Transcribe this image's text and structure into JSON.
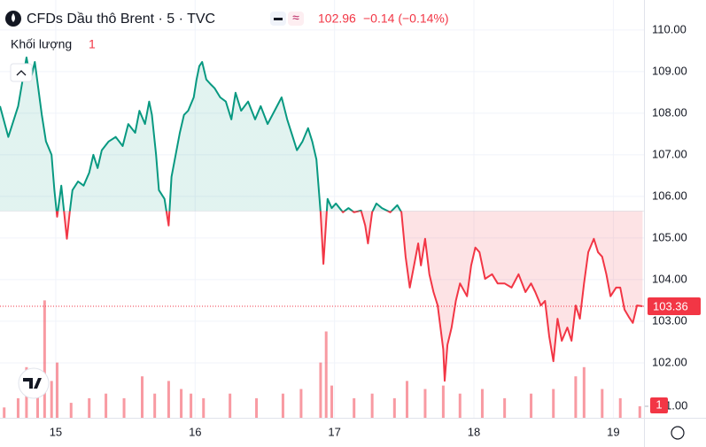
{
  "chart_data": {
    "type": "baseline",
    "title": "CFDs Dầu thô Brent · 5 · TVC",
    "change_text": "−0.14 (−0.14%)",
    "volume_label": "Khối lượng",
    "x": [
      14.6,
      14.66,
      14.73,
      14.79,
      14.82,
      14.85,
      14.9,
      14.93,
      14.97,
      14.99,
      15.01,
      15.04,
      15.08,
      15.1,
      15.12,
      15.16,
      15.2,
      15.24,
      15.27,
      15.3,
      15.33,
      15.38,
      15.43,
      15.48,
      15.52,
      15.57,
      15.6,
      15.64,
      15.67,
      15.69,
      15.72,
      15.74,
      15.78,
      15.81,
      15.83,
      15.86,
      15.89,
      15.92,
      15.95,
      15.99,
      16.01,
      16.03,
      16.05,
      16.08,
      16.11,
      16.14,
      16.18,
      16.22,
      16.26,
      16.29,
      16.33,
      16.38,
      16.43,
      16.47,
      16.52,
      16.57,
      16.62,
      16.66,
      16.7,
      16.73,
      16.77,
      16.81,
      16.84,
      16.87,
      16.9,
      16.92,
      16.95,
      16.98,
      17.01,
      17.06,
      17.1,
      17.14,
      17.19,
      17.22,
      17.24,
      17.27,
      17.3,
      17.34,
      17.4,
      17.45,
      17.48,
      17.51,
      17.54,
      17.57,
      17.6,
      17.62,
      17.65,
      17.68,
      17.71,
      17.74,
      17.78,
      17.79,
      17.81,
      17.84,
      17.87,
      17.9,
      17.95,
      17.98,
      18.01,
      18.04,
      18.08,
      18.13,
      18.17,
      18.22,
      18.27,
      18.32,
      18.37,
      18.41,
      18.44,
      18.48,
      18.51,
      18.54,
      18.57,
      18.6,
      18.63,
      18.67,
      18.7,
      18.73,
      18.76,
      18.79,
      18.82,
      18.86,
      18.89,
      18.92,
      18.95,
      18.98,
      19.02,
      19.05,
      19.08,
      19.11,
      19.14,
      19.17,
      19.21
    ],
    "values": [
      108.17,
      107.43,
      108.17,
      109.34,
      108.81,
      109.23,
      107.96,
      107.32,
      107.0,
      106.15,
      105.51,
      106.26,
      104.98,
      105.62,
      106.15,
      106.36,
      106.26,
      106.57,
      107.0,
      106.68,
      107.11,
      107.32,
      107.43,
      107.21,
      107.74,
      107.53,
      108.06,
      107.74,
      108.28,
      107.96,
      107.0,
      106.15,
      105.94,
      105.3,
      106.47,
      107.0,
      107.53,
      107.96,
      108.06,
      108.38,
      108.81,
      109.13,
      109.23,
      108.81,
      108.7,
      108.6,
      108.38,
      108.28,
      107.85,
      108.49,
      108.06,
      108.28,
      107.85,
      108.17,
      107.74,
      108.06,
      108.38,
      107.85,
      107.43,
      107.11,
      107.32,
      107.64,
      107.32,
      106.89,
      105.62,
      104.38,
      105.94,
      105.72,
      105.83,
      105.62,
      105.72,
      105.62,
      105.66,
      105.3,
      104.87,
      105.62,
      105.83,
      105.72,
      105.62,
      105.79,
      105.62,
      104.55,
      103.81,
      104.34,
      104.87,
      104.34,
      104.98,
      104.13,
      103.7,
      103.38,
      102.32,
      101.57,
      102.43,
      102.85,
      103.49,
      103.91,
      103.6,
      104.34,
      104.77,
      104.66,
      104.02,
      104.13,
      103.91,
      103.91,
      103.81,
      104.13,
      103.7,
      103.91,
      103.7,
      103.38,
      103.49,
      102.64,
      102.04,
      103.06,
      102.53,
      102.85,
      102.53,
      103.38,
      103.06,
      103.91,
      104.66,
      104.98,
      104.66,
      104.55,
      104.13,
      103.6,
      103.81,
      103.81,
      103.28,
      103.11,
      102.96,
      103.38,
      103.36
    ],
    "baseline": 105.65,
    "colors": {
      "up": "#089981",
      "down": "#f23645"
    },
    "xlim": [
      14.6,
      19.22
    ],
    "xticks": [
      15,
      16,
      17,
      18,
      19
    ],
    "ylim": [
      100.68,
      110.72
    ],
    "yticks": [
      {
        "value": 102,
        "label": "102.00"
      },
      {
        "value": 103,
        "label": "103.00"
      },
      {
        "value": 104,
        "label": "104.00"
      },
      {
        "value": 105,
        "label": "105.00"
      },
      {
        "value": 106,
        "label": "106.00"
      },
      {
        "value": 107,
        "label": "107.00"
      },
      {
        "value": 108,
        "label": "108.00"
      },
      {
        "value": 109,
        "label": "109.00"
      },
      {
        "value": 110,
        "label": "110.00"
      }
    ],
    "grid": true,
    "volume": {
      "x": [
        14.63,
        14.73,
        14.79,
        14.87,
        14.92,
        14.97,
        15.01,
        15.11,
        15.24,
        15.36,
        15.49,
        15.62,
        15.71,
        15.81,
        15.9,
        15.97,
        16.06,
        16.25,
        16.44,
        16.63,
        16.76,
        16.9,
        16.94,
        16.98,
        17.14,
        17.27,
        17.43,
        17.52,
        17.65,
        17.78,
        17.9,
        18.06,
        18.22,
        18.41,
        18.57,
        18.73,
        18.79,
        18.92,
        19.05,
        19.19
      ],
      "values": [
        0.9,
        1.7,
        4.4,
        2.5,
        10.2,
        3.2,
        4.8,
        1.3,
        1.7,
        2.1,
        1.7,
        3.6,
        2.1,
        3.2,
        2.5,
        2.1,
        1.7,
        2.1,
        1.7,
        2.1,
        2.5,
        4.8,
        7.5,
        2.8,
        1.7,
        2.1,
        1.7,
        3.2,
        2.5,
        2.8,
        2.1,
        2.5,
        1.7,
        2.1,
        2.5,
        3.6,
        4.4,
        2.5,
        1.7,
        1
      ],
      "color": "#f2364580",
      "y2lim": [
        0,
        36.3
      ],
      "y2ticks": [
        {
          "value": 1,
          "label": "1.00"
        }
      ]
    }
  }
}
